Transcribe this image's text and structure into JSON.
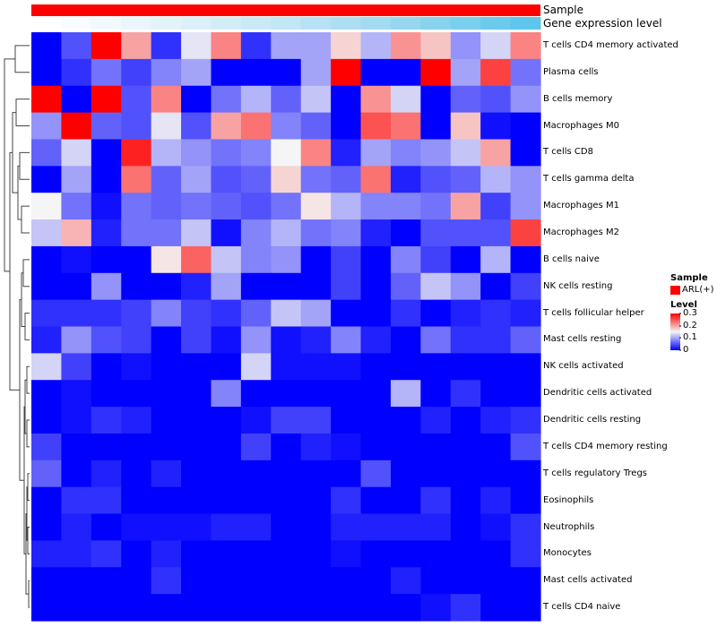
{
  "chart_data": {
    "type": "heatmap",
    "title": "",
    "annotations": {
      "sample_label": "Sample",
      "gene_label": "Gene expression level",
      "sample_color": "#ff0000",
      "gene_gradient": [
        "#ffffff",
        "#d9eff8",
        "#a8dcf0",
        "#5ec6ec"
      ]
    },
    "color_scale": {
      "min_color": "#0000ff",
      "mid_color": "#f5f5f5",
      "max_color": "#ff0000",
      "range": [
        0,
        0.3
      ],
      "ticks": [
        "0.3",
        "0.2",
        "0.1",
        "0"
      ]
    },
    "legend": {
      "sample_title": "Sample",
      "sample_item": "ARL(+)",
      "level_title": "Level"
    },
    "rows": [
      "T cells CD4 memory activated",
      "Plasma cells",
      "B cells memory",
      "Macrophages M0",
      "T cells CD8",
      "T cells gamma delta",
      "Macrophages M1",
      "Macrophages M2",
      "B cells naive",
      "NK cells resting",
      "T cells follicular helper",
      "Mast cells resting",
      "NK cells activated",
      "Dendritic cells activated",
      "Dendritic cells resting",
      "T cells CD4 memory resting",
      "T cells regulatory  Tregs",
      "Eosinophils",
      "Neutrophils",
      "Monocytes",
      "Mast cells activated",
      "T cells CD4 naive"
    ],
    "values": [
      [
        0.0,
        0.05,
        0.3,
        0.2,
        0.03,
        0.14,
        0.22,
        0.03,
        0.1,
        0.1,
        0.17,
        0.11,
        0.21,
        0.18,
        0.09,
        0.13,
        0.22
      ],
      [
        0.0,
        0.03,
        0.07,
        0.04,
        0.08,
        0.1,
        0.0,
        0.0,
        0.0,
        0.1,
        0.3,
        0.0,
        0.0,
        0.3,
        0.1,
        0.26,
        0.07
      ],
      [
        0.3,
        0.0,
        0.3,
        0.05,
        0.22,
        0.0,
        0.07,
        0.11,
        0.06,
        0.12,
        0.0,
        0.21,
        0.13,
        0.0,
        0.06,
        0.05,
        0.09
      ],
      [
        0.09,
        0.3,
        0.06,
        0.05,
        0.14,
        0.05,
        0.2,
        0.23,
        0.08,
        0.06,
        0.0,
        0.25,
        0.23,
        0.0,
        0.18,
        0.01,
        0.0
      ],
      [
        0.06,
        0.13,
        0.0,
        0.28,
        0.11,
        0.09,
        0.07,
        0.08,
        0.15,
        0.22,
        0.02,
        0.1,
        0.08,
        0.09,
        0.12,
        0.2,
        0.0
      ],
      [
        0.0,
        0.1,
        0.0,
        0.23,
        0.06,
        0.1,
        0.05,
        0.06,
        0.17,
        0.07,
        0.06,
        0.23,
        0.02,
        0.05,
        0.06,
        0.11,
        0.09
      ],
      [
        0.15,
        0.07,
        0.01,
        0.07,
        0.06,
        0.07,
        0.06,
        0.05,
        0.07,
        0.16,
        0.11,
        0.08,
        0.08,
        0.07,
        0.2,
        0.04,
        0.09
      ],
      [
        0.12,
        0.19,
        0.02,
        0.07,
        0.07,
        0.12,
        0.01,
        0.08,
        0.11,
        0.07,
        0.08,
        0.02,
        0.0,
        0.05,
        0.05,
        0.05,
        0.26
      ],
      [
        0.0,
        0.01,
        0.0,
        0.0,
        0.16,
        0.24,
        0.12,
        0.08,
        0.09,
        0.0,
        0.04,
        0.0,
        0.08,
        0.04,
        0.0,
        0.11,
        0.0
      ],
      [
        0.0,
        0.0,
        0.09,
        0.0,
        0.0,
        0.02,
        0.1,
        0.0,
        0.0,
        0.0,
        0.04,
        0.0,
        0.06,
        0.12,
        0.09,
        0.0,
        0.04
      ],
      [
        0.03,
        0.03,
        0.03,
        0.04,
        0.08,
        0.04,
        0.03,
        0.06,
        0.12,
        0.1,
        0.0,
        0.0,
        0.03,
        0.0,
        0.02,
        0.03,
        0.02
      ],
      [
        0.02,
        0.09,
        0.05,
        0.04,
        0.0,
        0.04,
        0.01,
        0.09,
        0.01,
        0.02,
        0.08,
        0.02,
        0.0,
        0.07,
        0.03,
        0.03,
        0.06
      ],
      [
        0.13,
        0.04,
        0.0,
        0.01,
        0.0,
        0.0,
        0.0,
        0.13,
        0.01,
        0.01,
        0.01,
        0.0,
        0.0,
        0.0,
        0.0,
        0.0,
        0.0
      ],
      [
        0.0,
        0.01,
        0.0,
        0.0,
        0.0,
        0.0,
        0.08,
        0.0,
        0.0,
        0.0,
        0.0,
        0.0,
        0.11,
        0.0,
        0.03,
        0.0,
        0.0
      ],
      [
        0.0,
        0.01,
        0.03,
        0.02,
        0.0,
        0.0,
        0.0,
        0.01,
        0.04,
        0.04,
        0.0,
        0.0,
        0.0,
        0.02,
        0.0,
        0.02,
        0.03
      ],
      [
        0.04,
        0.0,
        0.0,
        0.0,
        0.0,
        0.0,
        0.0,
        0.04,
        0.0,
        0.02,
        0.01,
        0.0,
        0.0,
        0.0,
        0.0,
        0.0,
        0.05
      ],
      [
        0.06,
        0.0,
        0.02,
        0.0,
        0.02,
        0.0,
        0.0,
        0.0,
        0.0,
        0.0,
        0.0,
        0.05,
        0.0,
        0.0,
        0.0,
        0.0,
        0.0
      ],
      [
        0.0,
        0.03,
        0.03,
        0.0,
        0.0,
        0.0,
        0.0,
        0.0,
        0.0,
        0.0,
        0.03,
        0.0,
        0.0,
        0.03,
        0.0,
        0.02,
        0.0
      ],
      [
        0.0,
        0.02,
        0.0,
        0.01,
        0.01,
        0.01,
        0.02,
        0.02,
        0.0,
        0.0,
        0.02,
        0.02,
        0.02,
        0.02,
        0.0,
        0.01,
        0.03
      ],
      [
        0.02,
        0.02,
        0.03,
        0.0,
        0.02,
        0.0,
        0.0,
        0.0,
        0.0,
        0.0,
        0.01,
        0.0,
        0.0,
        0.0,
        0.0,
        0.0,
        0.03
      ],
      [
        0.0,
        0.0,
        0.0,
        0.0,
        0.03,
        0.0,
        0.0,
        0.0,
        0.0,
        0.0,
        0.0,
        0.0,
        0.02,
        0.0,
        0.0,
        0.0,
        0.0
      ],
      [
        0.0,
        0.0,
        0.0,
        0.0,
        0.0,
        0.0,
        0.0,
        0.0,
        0.0,
        0.0,
        0.0,
        0.0,
        0.0,
        0.01,
        0.03,
        0.0,
        0.0
      ]
    ]
  }
}
